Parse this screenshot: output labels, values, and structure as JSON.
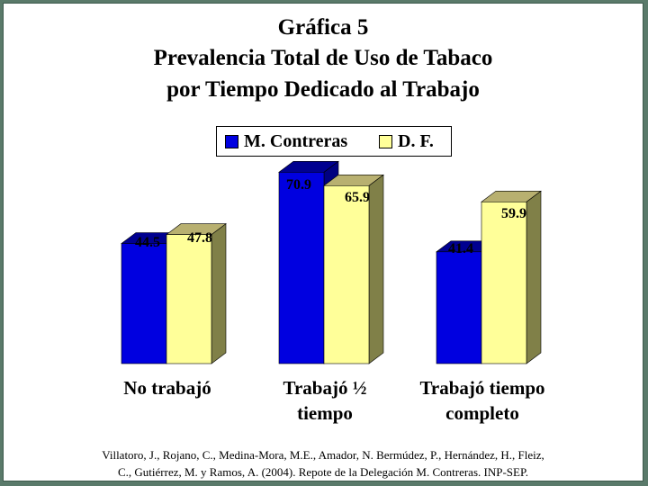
{
  "title_lines": [
    "Gráfica 5",
    "Prevalencia Total de Uso de Tabaco",
    "por Tiempo Dedicado al Trabajo"
  ],
  "source_lines": [
    "Villatoro, J., Rojano, C., Medina-Mora, M.E., Amador, N. Bermúdez, P., Hernández, H., Fleiz,",
    "C., Gutiérrez, M. y Ramos, A. (2004). Repote de la Delegación M. Contreras. INP-SEP."
  ],
  "colors": {
    "series1_front": "#0000e0",
    "series1_side": "#000080",
    "series1_top": "#000090",
    "series2_front": "#ffff99",
    "series2_side": "#808048",
    "series2_top": "#b8b070",
    "frame_border": "#5a7a6a"
  },
  "chart_data": {
    "type": "bar",
    "categories": [
      [
        "No trabajó"
      ],
      [
        "Trabajó ½",
        "tiempo"
      ],
      [
        "Trabajó tiempo",
        "completo"
      ]
    ],
    "series": [
      {
        "name": "M. Contreras",
        "values": [
          44.5,
          70.9,
          41.4
        ]
      },
      {
        "name": "D. F.",
        "values": [
          47.8,
          65.9,
          59.9
        ]
      }
    ],
    "value_labels": [
      [
        "44.5",
        "70.9",
        "41.4"
      ],
      [
        "47.8",
        "65.9",
        "59.9"
      ]
    ],
    "ylim": [
      0,
      80
    ],
    "grid": false,
    "legend_position": "top-center",
    "three_d": true
  }
}
